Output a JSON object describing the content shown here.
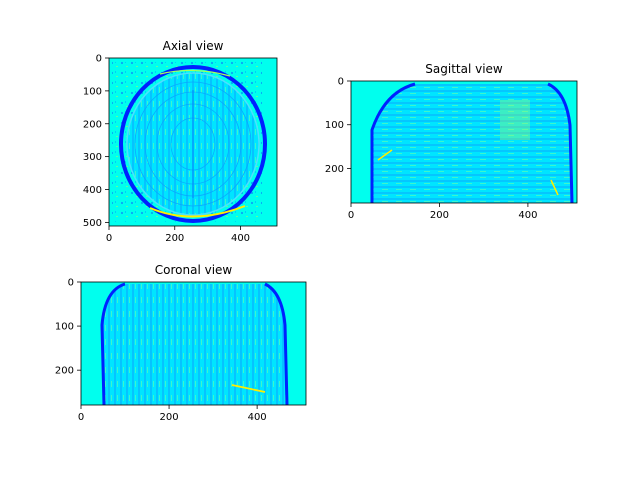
{
  "colors": {
    "background": "#00ffee",
    "edge_dark": "#0022ff",
    "edge_mid": "#0080ff",
    "highlight": "#aaff55",
    "highlight_strong": "#ffee00",
    "axis": "#000000"
  },
  "chart_data": [
    {
      "type": "heatmap",
      "colormap": "jet",
      "title": "Axial view",
      "xlim": [
        0,
        511
      ],
      "ylim": [
        511,
        0
      ],
      "xticks": [
        0,
        200,
        400
      ],
      "yticks": [
        0,
        100,
        200,
        300,
        400,
        500
      ]
    },
    {
      "type": "heatmap",
      "colormap": "jet",
      "title": "Sagittal view",
      "xlim": [
        0,
        511
      ],
      "ylim": [
        279,
        0
      ],
      "xticks": [
        0,
        200,
        400
      ],
      "yticks": [
        0,
        100,
        200
      ]
    },
    {
      "type": "heatmap",
      "colormap": "jet",
      "title": "Coronal view",
      "xlim": [
        0,
        511
      ],
      "ylim": [
        279,
        0
      ],
      "xticks": [
        0,
        200,
        400
      ],
      "yticks": [
        0,
        100,
        200
      ]
    }
  ]
}
